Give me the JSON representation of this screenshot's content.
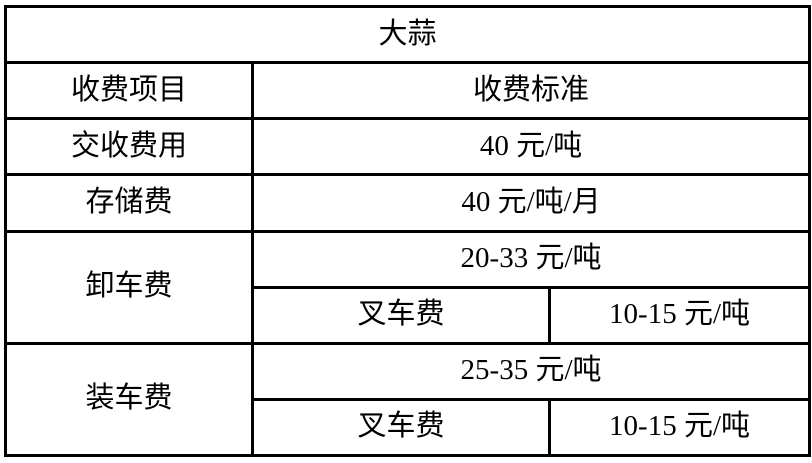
{
  "table": {
    "title": "大蒜",
    "header": {
      "item": "收费项目",
      "standard": "收费标准"
    },
    "rows": {
      "delivery": {
        "label": "交收费用",
        "value": "40 元/吨"
      },
      "storage": {
        "label": "存储费",
        "value": "40 元/吨/月"
      },
      "unloading": {
        "label": "卸车费",
        "value": "20-33 元/吨",
        "sub_label": "叉车费",
        "sub_value": "10-15 元/吨"
      },
      "loading": {
        "label": "装车费",
        "value": "25-35 元/吨",
        "sub_label": "叉车费",
        "sub_value": "10-15 元/吨"
      }
    },
    "colors": {
      "border": "#000000",
      "background": "#ffffff",
      "text": "#000000"
    }
  }
}
